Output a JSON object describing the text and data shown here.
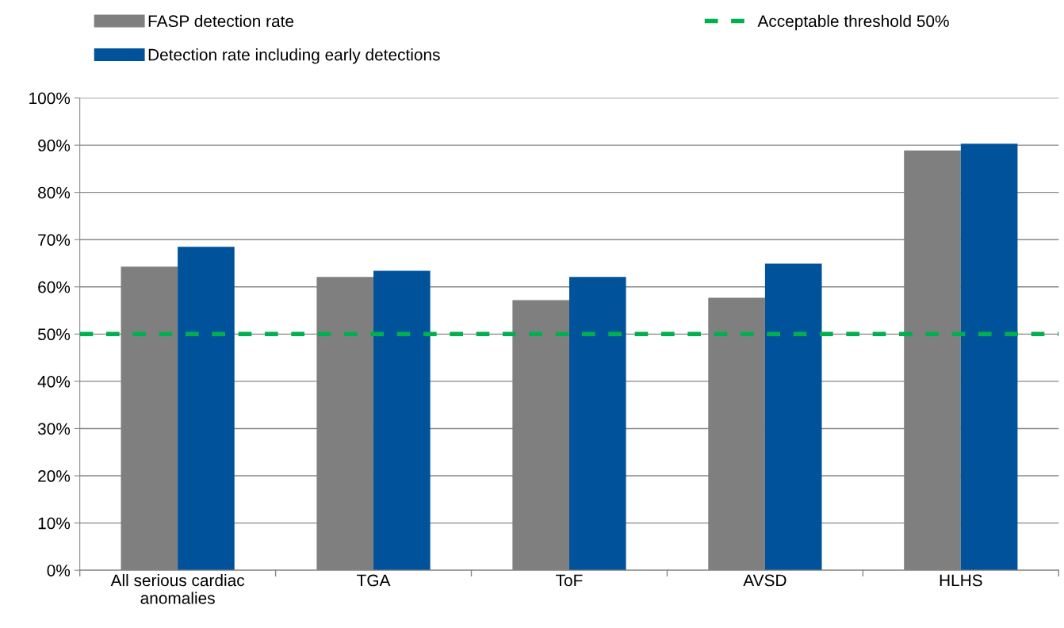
{
  "chart_data": {
    "type": "bar",
    "categories": [
      "All serious cardiac\nanomalies",
      "TGA",
      "ToF",
      "AVSD",
      "HLHS"
    ],
    "series": [
      {
        "name": "FASP detection rate",
        "color": "#7f7f7f",
        "values": [
          64.3,
          62.1,
          57.2,
          57.7,
          88.9
        ]
      },
      {
        "name": "Detection rate including early detections",
        "color": "#00529b",
        "values": [
          68.5,
          63.4,
          62.1,
          64.9,
          90.3
        ]
      }
    ],
    "ylim": [
      0,
      100
    ],
    "yticks": [
      {
        "value": 0,
        "label": "0%"
      },
      {
        "value": 10,
        "label": "10%"
      },
      {
        "value": 20,
        "label": "20%"
      },
      {
        "value": 30,
        "label": "30%"
      },
      {
        "value": 40,
        "label": "40%"
      },
      {
        "value": 50,
        "label": "50%"
      },
      {
        "value": 60,
        "label": "60%"
      },
      {
        "value": 70,
        "label": "70%"
      },
      {
        "value": 80,
        "label": "80%"
      },
      {
        "value": 90,
        "label": "90%"
      },
      {
        "value": 100,
        "label": "100%"
      }
    ],
    "ref_lines": [
      {
        "axis": "y",
        "value": 50,
        "label": "Acceptable threshold 50%",
        "color": "#00b050",
        "line_style": "dashed"
      }
    ],
    "grid": "y",
    "legend": "top"
  }
}
